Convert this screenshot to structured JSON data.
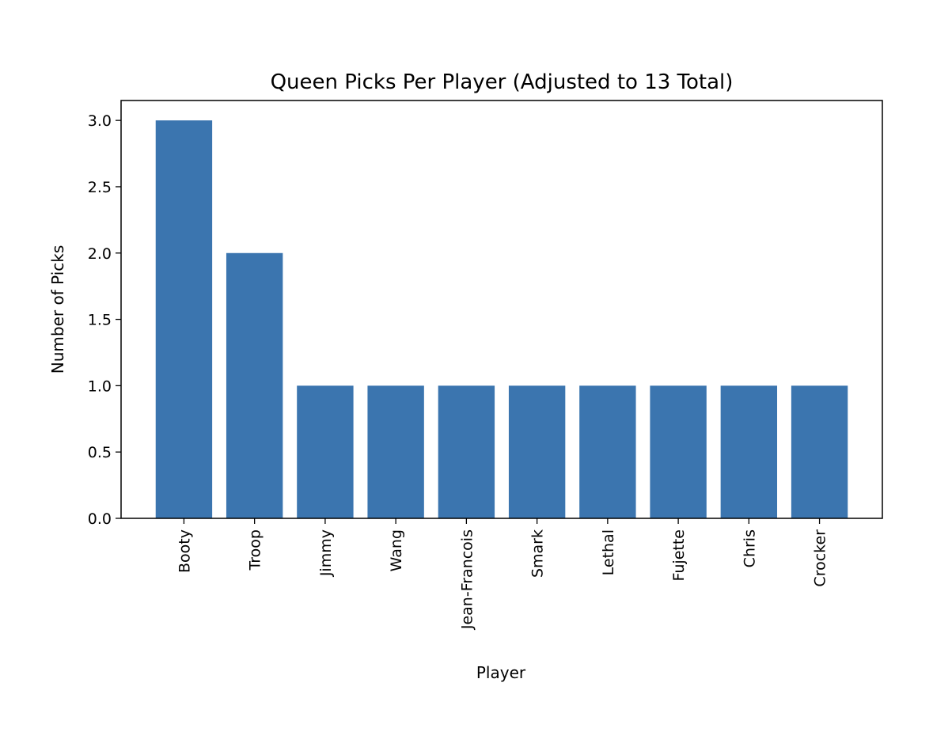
{
  "chart_data": {
    "type": "bar",
    "title": "Queen Picks Per Player (Adjusted to 13 Total)",
    "xlabel": "Player",
    "ylabel": "Number of Picks",
    "categories": [
      "Booty",
      "Troop",
      "Jimmy",
      "Wang",
      "Jean-Francois",
      "Smark",
      "Lethal",
      "Fujette",
      "Chris",
      "Crocker"
    ],
    "values": [
      3,
      2,
      1,
      1,
      1,
      1,
      1,
      1,
      1,
      1
    ],
    "ylim": [
      0,
      3.15
    ],
    "yticks": [
      "0.0",
      "0.5",
      "1.0",
      "1.5",
      "2.0",
      "2.5",
      "3.0"
    ],
    "bar_color": "#3b75af",
    "grid": false,
    "legend": "none",
    "x_tick_rotation": "vertical"
  }
}
